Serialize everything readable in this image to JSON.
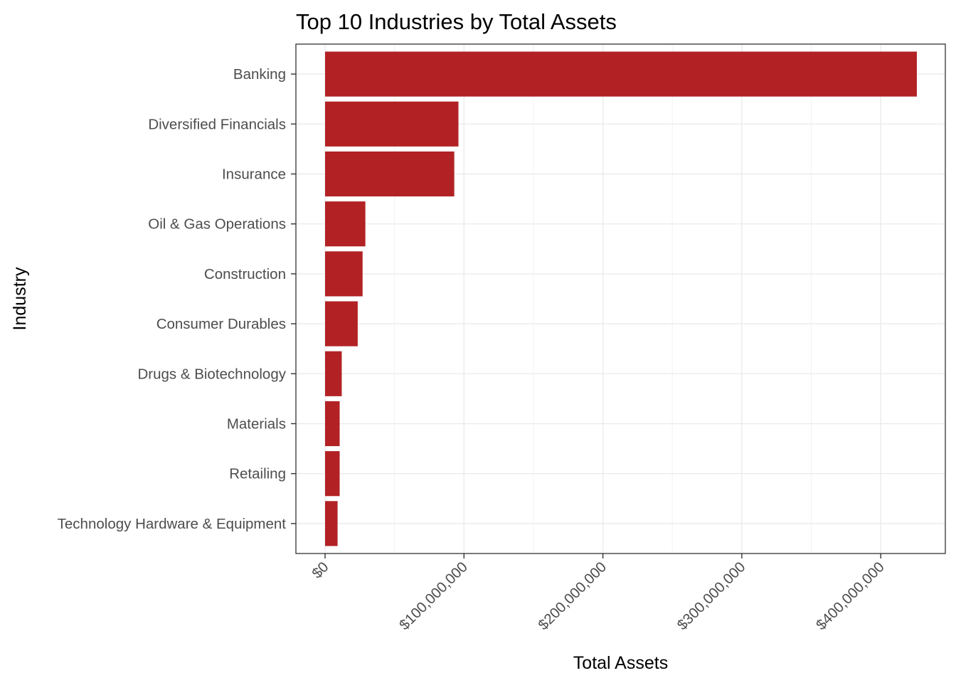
{
  "chart_data": {
    "type": "bar",
    "orientation": "horizontal",
    "title": "Top 10 Industries by Total Assets",
    "xlabel": "Total Assets",
    "ylabel": "Industry",
    "categories": [
      "Banking",
      "Diversified Financials",
      "Insurance",
      "Oil & Gas Operations",
      "Construction",
      "Consumer Durables",
      "Drugs & Biotechnology",
      "Materials",
      "Retailing",
      "Technology Hardware & Equipment"
    ],
    "values": [
      426000000,
      96000000,
      93000000,
      29000000,
      27000000,
      23500000,
      12000000,
      10500000,
      10500000,
      9000000
    ],
    "xlim": [
      -21000000,
      446500000
    ],
    "xticks": [
      0,
      100000000,
      200000000,
      300000000,
      400000000
    ],
    "xtick_labels": [
      "$0",
      "$100,000,000",
      "$200,000,000",
      "$300,000,000",
      "$400,000,000"
    ],
    "grid": true,
    "bar_color": "#b22225"
  }
}
